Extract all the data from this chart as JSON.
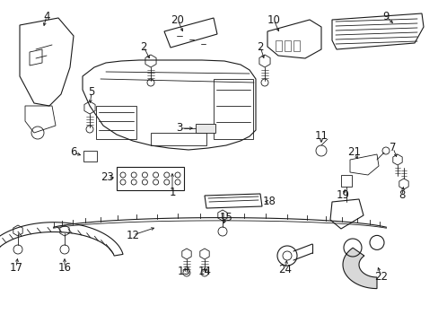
{
  "bg_color": "#ffffff",
  "line_color": "#1a1a1a",
  "label_fontsize": 8.5,
  "arrow_lw": 0.6,
  "part_lw": 0.8,
  "figsize": [
    4.89,
    3.6
  ],
  "dpi": 100
}
